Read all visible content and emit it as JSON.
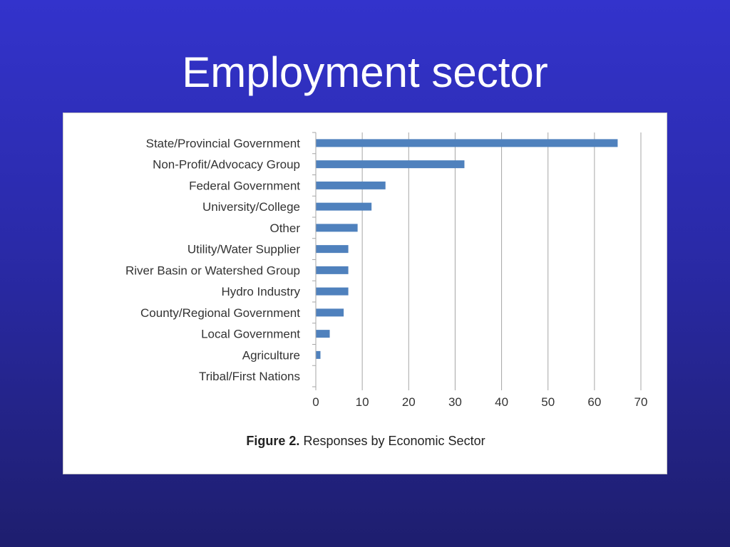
{
  "slide": {
    "title": "Employment sector",
    "caption_prefix": "Figure 2.",
    "caption_text": "Responses by Economic Sector"
  },
  "colors": {
    "background_top": "#3333cc",
    "background_bottom": "#1e1e6e",
    "bar": "#4f81bd",
    "grid": "#a6a6a6"
  },
  "chart_data": {
    "type": "bar",
    "orientation": "horizontal",
    "title": "",
    "xlabel": "",
    "ylabel": "",
    "categories": [
      "State/Provincial Government",
      "Non-Profit/Advocacy Group",
      "Federal Government",
      "University/College",
      "Other",
      "Utility/Water Supplier",
      "River Basin or Watershed Group",
      "Hydro Industry",
      "County/Regional Government",
      "Local Government",
      "Agriculture",
      "Tribal/First Nations"
    ],
    "values": [
      65,
      32,
      15,
      12,
      9,
      7,
      7,
      7,
      6,
      3,
      1,
      0
    ],
    "xlim": [
      0,
      70
    ],
    "xticks": [
      0,
      10,
      20,
      30,
      40,
      50,
      60,
      70
    ],
    "grid": "vertical",
    "legend": "none"
  }
}
